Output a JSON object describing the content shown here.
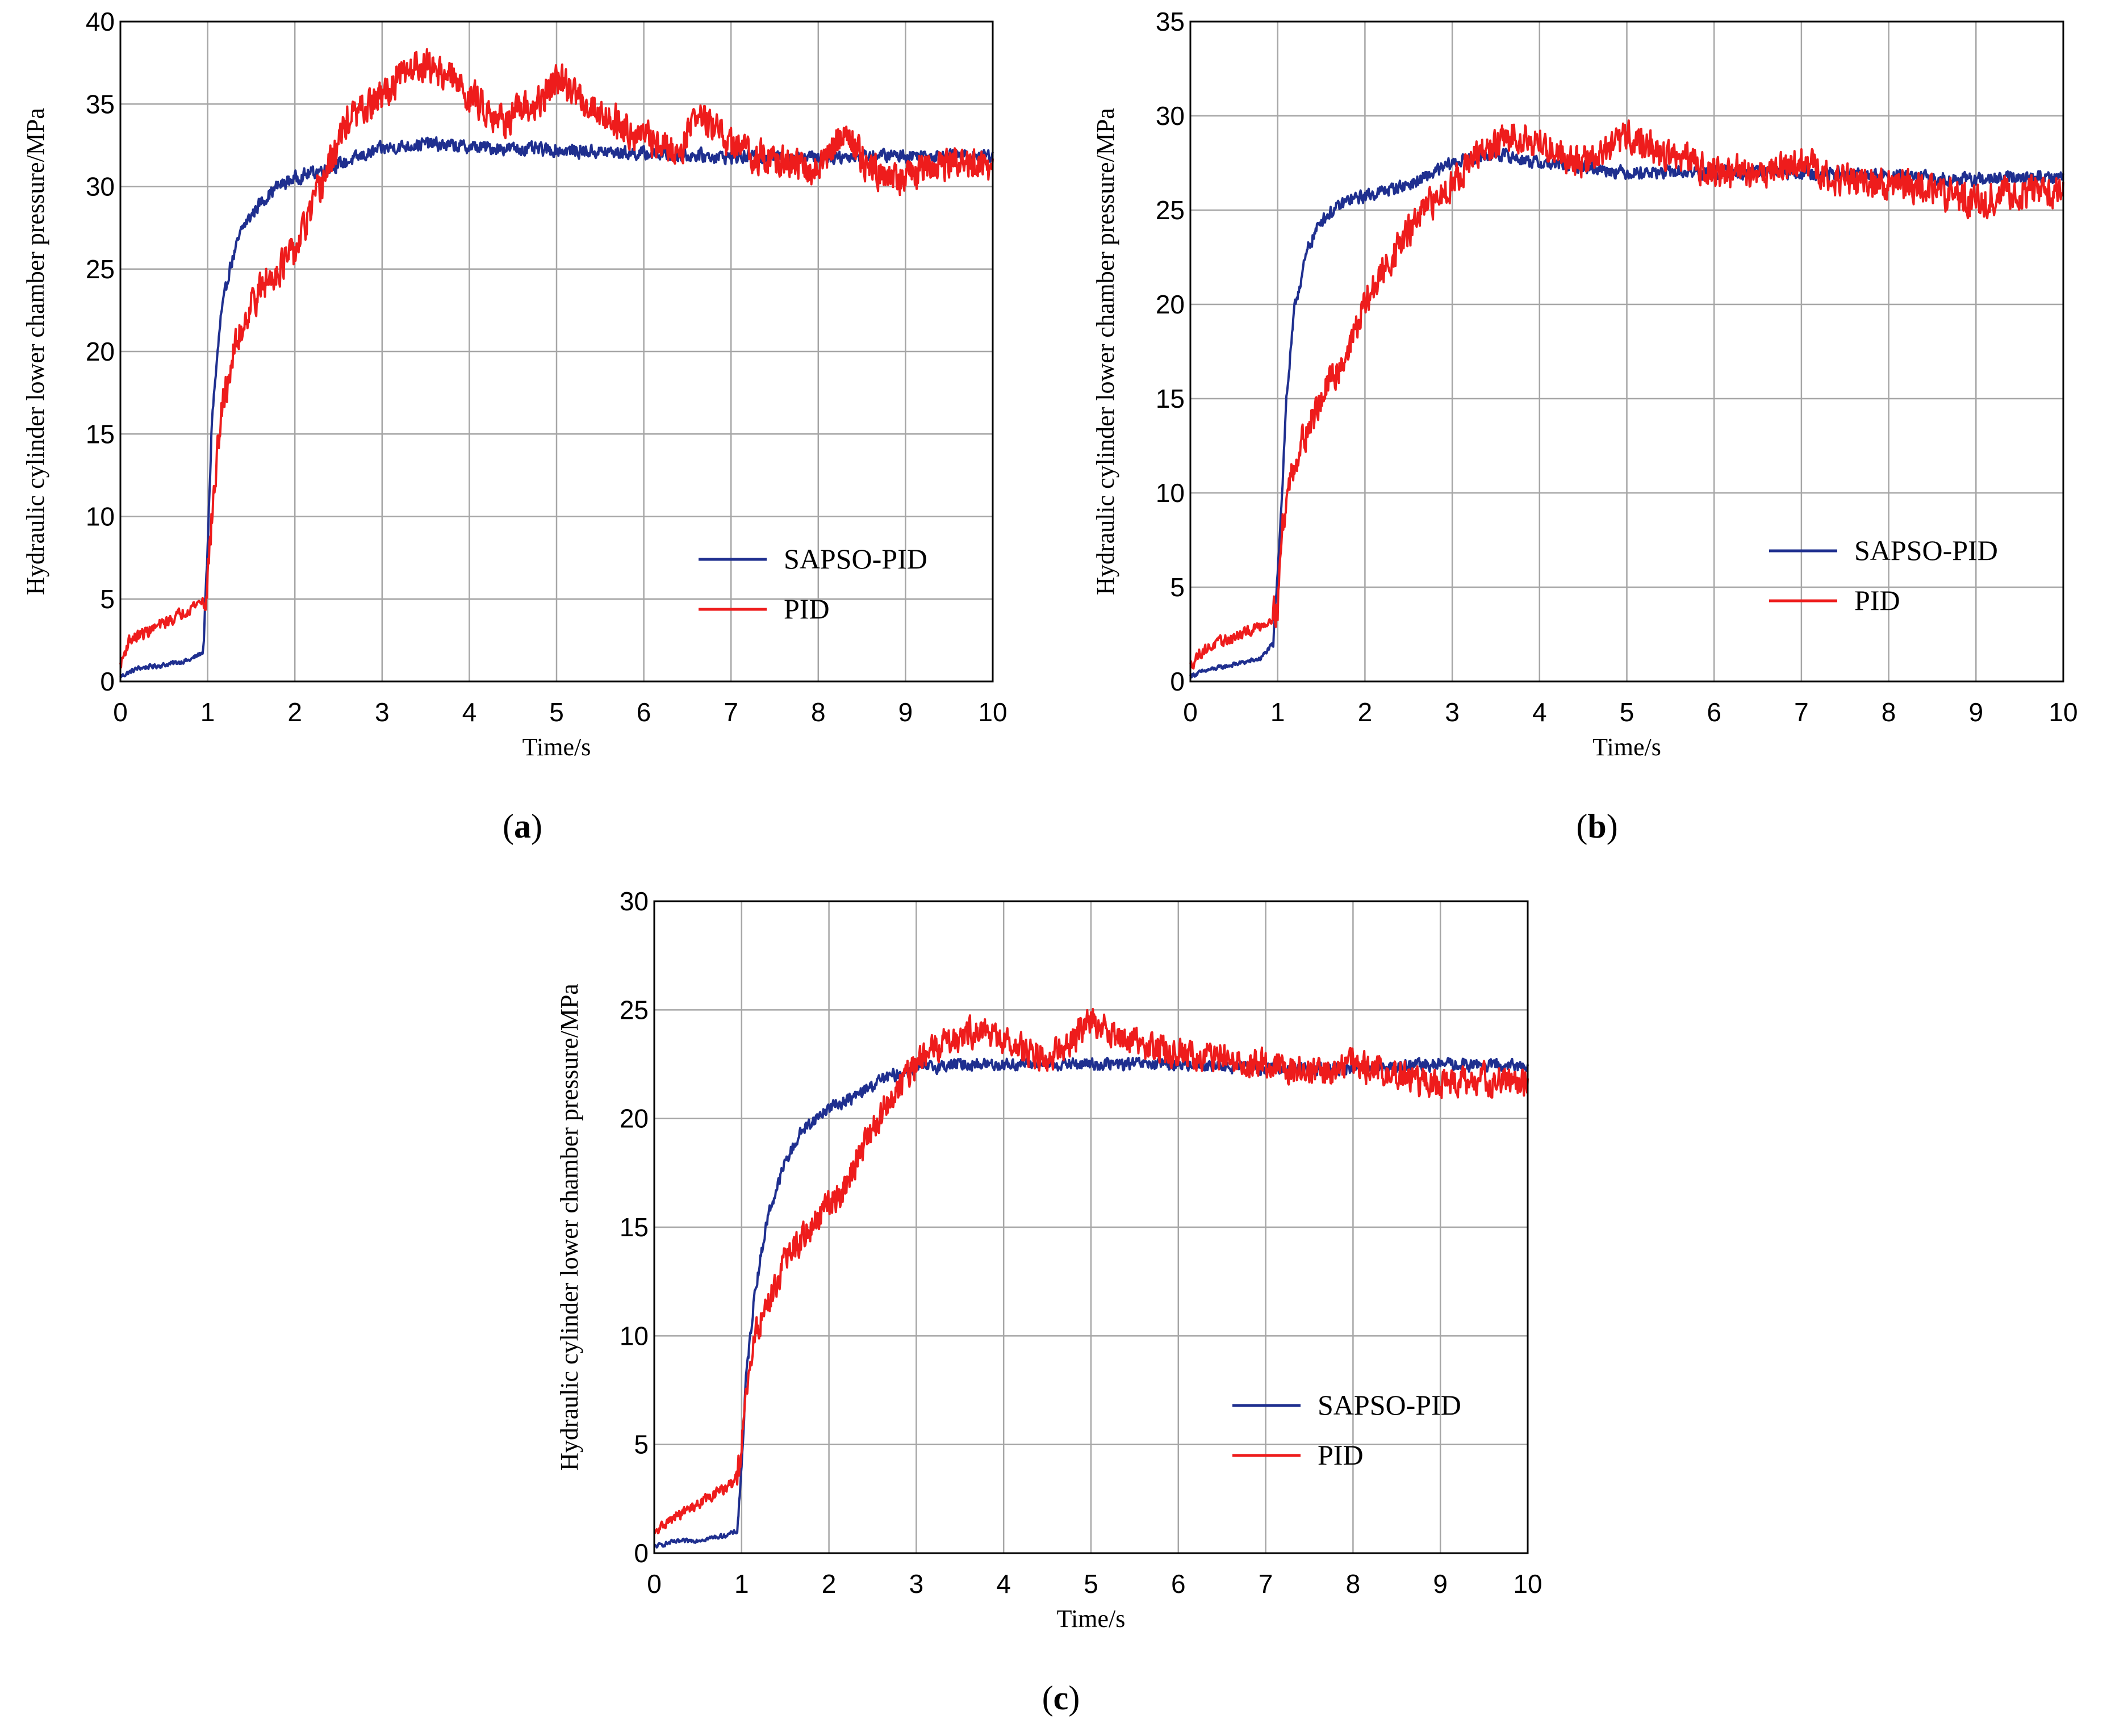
{
  "colors": {
    "sapso_pid": "#1f2f8f",
    "pid": "#ee1c1c",
    "grid": "#a6a6a6",
    "axis": "#000000"
  },
  "chart_data": [
    {
      "id": "a",
      "type": "line",
      "caption_letter": "a",
      "xlabel": "Time/s",
      "ylabel": "Hydraulic cylinder lower chamber pressure/MPa",
      "xlim": [
        0,
        10
      ],
      "ylim": [
        0,
        40
      ],
      "xticks": [
        "0",
        "1",
        "2",
        "3",
        "4",
        "5",
        "6",
        "7",
        "8",
        "9",
        "10"
      ],
      "yticks": [
        "0",
        "5",
        "10",
        "15",
        "20",
        "25",
        "30",
        "35",
        "40"
      ],
      "grid": true,
      "legend_position": "bottom-right",
      "series": [
        {
          "name": "SAPSO-PID",
          "color_key": "sapso_pid",
          "noise": 0.35,
          "x": [
            0,
            0.2,
            0.5,
            0.8,
            0.95,
            1.0,
            1.05,
            1.15,
            1.25,
            1.4,
            1.6,
            1.8,
            2.0,
            2.3,
            2.6,
            3.0,
            3.5,
            4.0,
            5.0,
            6.0,
            7.0,
            8.0,
            9.0,
            10.0
          ],
          "y": [
            0.3,
            0.8,
            1.0,
            1.3,
            1.8,
            8.0,
            16.0,
            22.0,
            25.0,
            27.5,
            29.0,
            30.0,
            30.5,
            31.0,
            31.5,
            32.3,
            32.6,
            32.4,
            32.2,
            32.0,
            31.8,
            31.8,
            31.9,
            31.9
          ]
        },
        {
          "name": "PID",
          "color_key": "pid",
          "noise": 0.9,
          "x": [
            0,
            0.1,
            0.3,
            0.6,
            0.9,
            0.98,
            1.05,
            1.15,
            1.3,
            1.5,
            1.8,
            2.0,
            2.3,
            2.6,
            2.9,
            3.1,
            3.4,
            3.7,
            4.0,
            4.4,
            4.8,
            5.0,
            5.5,
            6.0,
            6.4,
            6.6,
            7.0,
            7.5,
            8.0,
            8.3,
            8.6,
            9.0,
            9.5,
            10.0
          ],
          "y": [
            1.0,
            2.5,
            3.0,
            3.8,
            4.8,
            5.0,
            10.0,
            16.0,
            20.0,
            23.0,
            25.0,
            26.0,
            30.0,
            34.0,
            35.0,
            36.0,
            37.5,
            37.0,
            35.5,
            34.0,
            35.0,
            36.5,
            34.5,
            33.0,
            32.0,
            34.5,
            32.5,
            31.5,
            31.0,
            33.5,
            31.0,
            30.5,
            31.5,
            31.0
          ]
        }
      ]
    },
    {
      "id": "b",
      "type": "line",
      "caption_letter": "b",
      "xlabel": "Time/s",
      "ylabel": "Hydraulic cylinder lower chamber pressure/MPa",
      "xlim": [
        0,
        10
      ],
      "ylim": [
        0,
        35
      ],
      "xticks": [
        "0",
        "1",
        "2",
        "3",
        "4",
        "5",
        "6",
        "7",
        "8",
        "9",
        "10"
      ],
      "yticks": [
        "0",
        "5",
        "10",
        "15",
        "20",
        "25",
        "30",
        "35"
      ],
      "grid": true,
      "legend_position": "bottom-right",
      "series": [
        {
          "name": "SAPSO-PID",
          "color_key": "sapso_pid",
          "noise": 0.3,
          "x": [
            0,
            0.2,
            0.5,
            0.8,
            0.95,
            1.0,
            1.05,
            1.1,
            1.2,
            1.35,
            1.5,
            1.8,
            2.2,
            2.6,
            3.0,
            3.5,
            4.0,
            4.5,
            5.0,
            6.0,
            7.0,
            8.0,
            9.0,
            10.0
          ],
          "y": [
            0.3,
            0.6,
            0.9,
            1.2,
            2.0,
            6.0,
            10.0,
            15.0,
            20.0,
            23.0,
            24.5,
            25.5,
            26.0,
            26.5,
            27.5,
            28.0,
            27.5,
            27.3,
            27.0,
            27.0,
            27.0,
            26.8,
            26.6,
            26.8
          ]
        },
        {
          "name": "PID",
          "color_key": "pid",
          "noise": 0.75,
          "x": [
            0,
            0.1,
            0.3,
            0.6,
            0.9,
            1.0,
            1.05,
            1.15,
            1.3,
            1.5,
            1.8,
            2.0,
            2.3,
            2.6,
            2.9,
            3.2,
            3.5,
            3.8,
            4.0,
            4.5,
            4.9,
            5.0,
            5.4,
            5.8,
            6.0,
            6.5,
            7.0,
            7.5,
            8.0,
            8.5,
            9.0,
            9.5,
            10.0
          ],
          "y": [
            0.8,
            1.5,
            2.0,
            2.5,
            3.2,
            4.0,
            8.0,
            11.0,
            13.0,
            15.0,
            17.5,
            20.0,
            22.5,
            24.5,
            26.0,
            27.5,
            28.5,
            29.0,
            28.5,
            27.5,
            28.5,
            29.0,
            28.0,
            27.5,
            27.0,
            27.0,
            27.5,
            26.5,
            26.5,
            26.0,
            25.5,
            26.0,
            26.0
          ]
        }
      ]
    },
    {
      "id": "c",
      "type": "line",
      "caption_letter": "c",
      "xlabel": "Time/s",
      "ylabel": "Hydraulic cylinder lower chamber pressure/MPa",
      "xlim": [
        0,
        10
      ],
      "ylim": [
        0,
        30
      ],
      "xticks": [
        "0",
        "1",
        "2",
        "3",
        "4",
        "5",
        "6",
        "7",
        "8",
        "9",
        "10"
      ],
      "yticks": [
        "0",
        "5",
        "10",
        "15",
        "20",
        "25",
        "30"
      ],
      "grid": true,
      "legend_position": "bottom-right",
      "series": [
        {
          "name": "SAPSO-PID",
          "color_key": "sapso_pid",
          "noise": 0.25,
          "x": [
            0,
            0.2,
            0.5,
            0.8,
            0.95,
            1.0,
            1.05,
            1.15,
            1.3,
            1.5,
            1.7,
            2.0,
            2.3,
            2.6,
            3.0,
            3.5,
            4.0,
            5.0,
            6.0,
            7.0,
            8.0,
            9.0,
            10.0
          ],
          "y": [
            0.3,
            0.5,
            0.6,
            0.8,
            1.0,
            4.0,
            8.0,
            12.0,
            15.5,
            18.0,
            19.5,
            20.5,
            21.0,
            21.8,
            22.3,
            22.5,
            22.5,
            22.5,
            22.5,
            22.3,
            22.3,
            22.5,
            22.4
          ]
        },
        {
          "name": "PID",
          "color_key": "pid",
          "noise": 0.6,
          "x": [
            0,
            0.1,
            0.3,
            0.6,
            0.9,
            0.98,
            1.05,
            1.15,
            1.3,
            1.5,
            1.8,
            2.0,
            2.2,
            2.5,
            2.8,
            3.0,
            3.3,
            3.6,
            3.8,
            4.0,
            4.5,
            4.9,
            5.0,
            5.5,
            6.0,
            6.5,
            7.0,
            7.5,
            8.0,
            8.5,
            9.0,
            9.5,
            10.0
          ],
          "y": [
            0.8,
            1.3,
            1.8,
            2.5,
            3.2,
            4.0,
            7.0,
            10.0,
            11.5,
            13.5,
            15.0,
            16.0,
            17.0,
            19.5,
            21.5,
            22.5,
            23.5,
            24.0,
            24.0,
            23.5,
            22.8,
            24.0,
            24.5,
            23.5,
            23.0,
            22.8,
            22.5,
            22.0,
            22.5,
            22.0,
            21.5,
            21.8,
            21.5
          ]
        }
      ]
    }
  ]
}
